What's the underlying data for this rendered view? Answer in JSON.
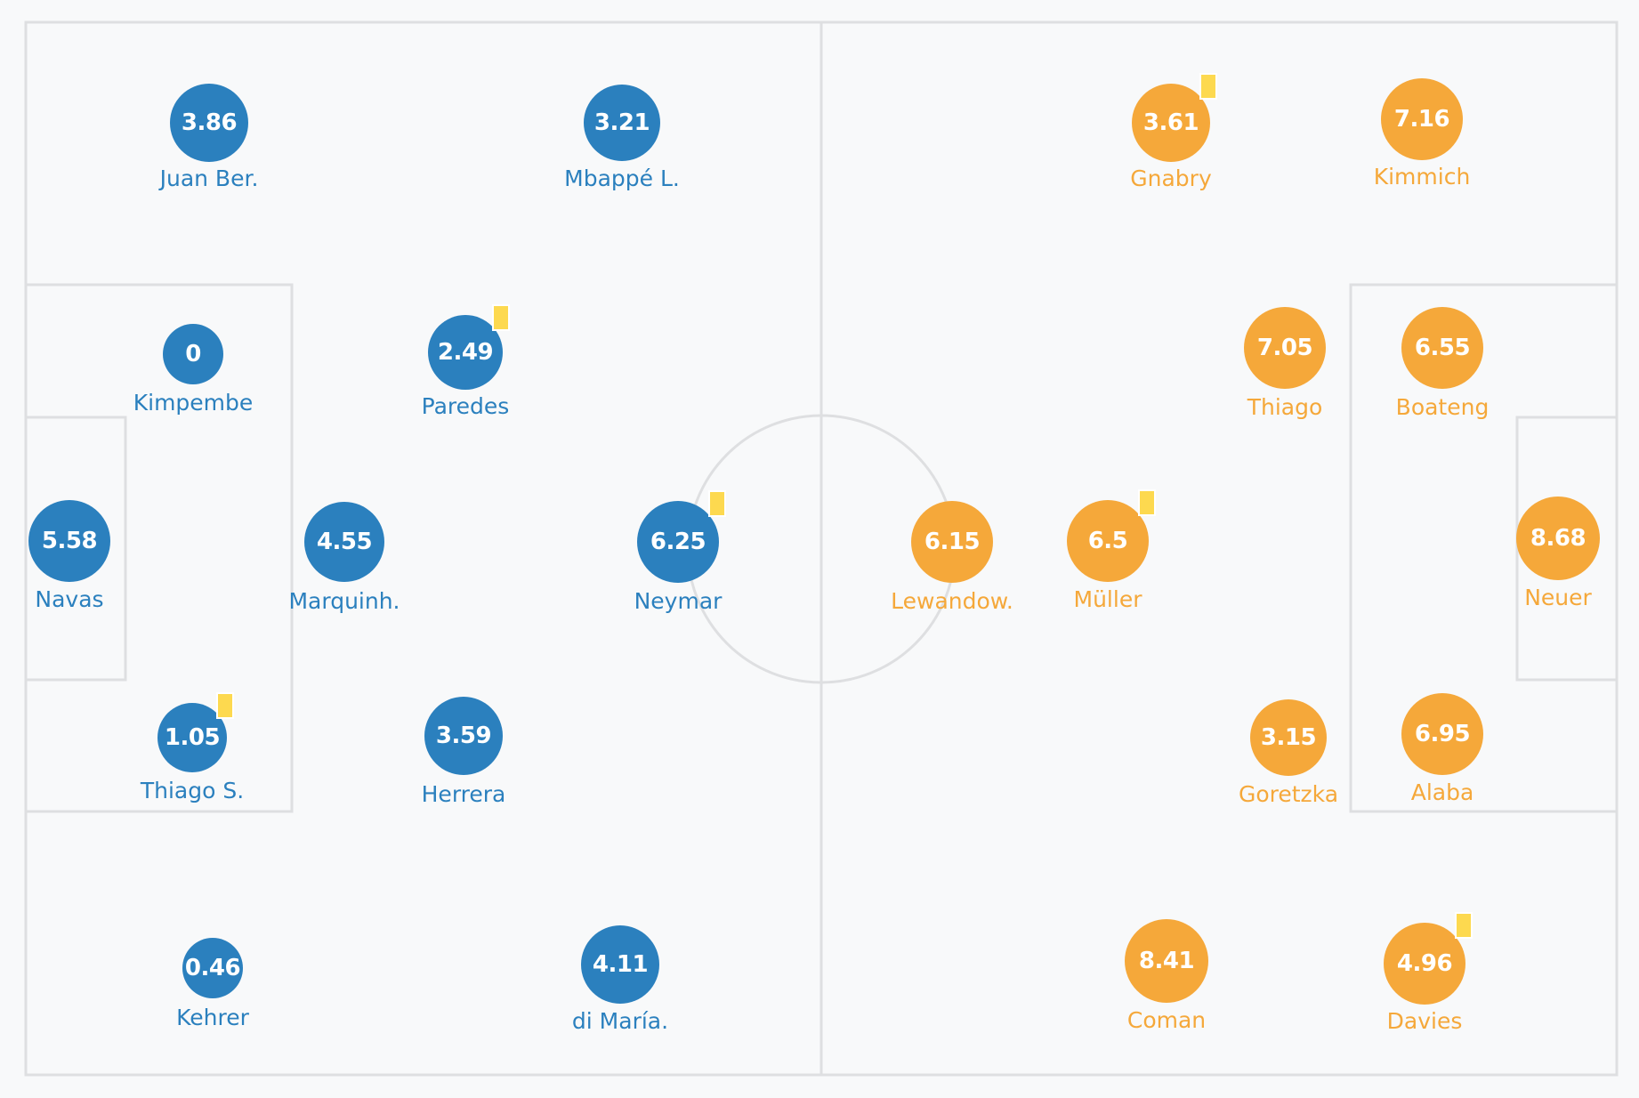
{
  "colors": {
    "home": "#2b80be",
    "away": "#f5a83a",
    "pitch_line": "#dedfe1",
    "background": "#f8f9fa",
    "yellow_card": "#fdd94f"
  },
  "home": {
    "players": [
      {
        "name": "Juan Ber.",
        "rating": "3.86",
        "yellow_card": false
      },
      {
        "name": "Mbappé L.",
        "rating": "3.21",
        "yellow_card": false
      },
      {
        "name": "Kimpembe",
        "rating": "0",
        "yellow_card": false
      },
      {
        "name": "Paredes",
        "rating": "2.49",
        "yellow_card": true
      },
      {
        "name": "Navas",
        "rating": "5.58",
        "yellow_card": false
      },
      {
        "name": "Marquinh.",
        "rating": "4.55",
        "yellow_card": false
      },
      {
        "name": "Neymar",
        "rating": "6.25",
        "yellow_card": true
      },
      {
        "name": "Thiago S.",
        "rating": "1.05",
        "yellow_card": true
      },
      {
        "name": "Herrera",
        "rating": "3.59",
        "yellow_card": false
      },
      {
        "name": "Kehrer",
        "rating": "0.46",
        "yellow_card": false
      },
      {
        "name": "di María.",
        "rating": "4.11",
        "yellow_card": false
      }
    ]
  },
  "away": {
    "players": [
      {
        "name": "Gnabry",
        "rating": "3.61",
        "yellow_card": true
      },
      {
        "name": "Kimmich",
        "rating": "7.16",
        "yellow_card": false
      },
      {
        "name": "Thiago",
        "rating": "7.05",
        "yellow_card": false
      },
      {
        "name": "Boateng",
        "rating": "6.55",
        "yellow_card": false
      },
      {
        "name": "Lewandow.",
        "rating": "6.15",
        "yellow_card": false
      },
      {
        "name": "Müller",
        "rating": "6.5",
        "yellow_card": true
      },
      {
        "name": "Neuer",
        "rating": "8.68",
        "yellow_card": false
      },
      {
        "name": "Goretzka",
        "rating": "3.15",
        "yellow_card": false
      },
      {
        "name": "Alaba",
        "rating": "6.95",
        "yellow_card": false
      },
      {
        "name": "Coman",
        "rating": "8.41",
        "yellow_card": false
      },
      {
        "name": "Davies",
        "rating": "4.96",
        "yellow_card": true
      }
    ]
  }
}
